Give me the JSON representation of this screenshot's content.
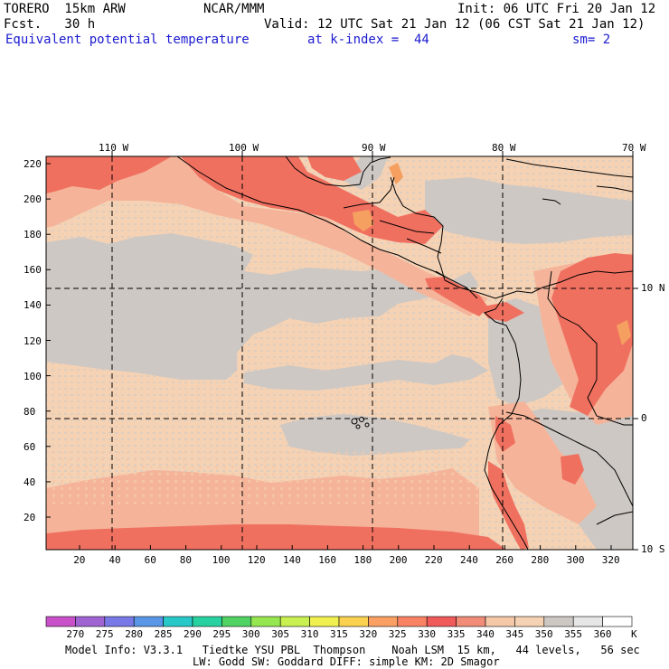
{
  "header": {
    "model": "TORERO  15km ARW",
    "org": "NCAR/MMM",
    "init": "Init: 06 UTC Fri 20 Jan 12",
    "fcst": "Fcst.   30 h",
    "valid": "Valid: 12 UTC Sat 21 Jan 12 (06 CST Sat 21 Jan 12)",
    "field": "Equivalent potential temperature",
    "level": "at k-index =  44",
    "smooth": "sm= 2"
  },
  "axes": {
    "lon_labels": [
      "110 W",
      "100 W",
      "90 W",
      "80 W",
      "70 W"
    ],
    "lat_labels": [
      "10 N",
      "0",
      "10 S"
    ],
    "y_ticks": [
      "220",
      "200",
      "180",
      "160",
      "140",
      "120",
      "100",
      "80",
      "60",
      "40",
      "20"
    ],
    "x_ticks": [
      "20",
      "40",
      "60",
      "80",
      "100",
      "120",
      "140",
      "160",
      "180",
      "200",
      "220",
      "240",
      "260",
      "280",
      "300",
      "320"
    ]
  },
  "colorbar": {
    "labels": [
      "270",
      "275",
      "280",
      "285",
      "290",
      "295",
      "300",
      "305",
      "310",
      "315",
      "320",
      "325",
      "330",
      "335",
      "340",
      "345",
      "350",
      "355",
      "360"
    ],
    "unit": "K",
    "colors": [
      "#c850c8",
      "#a064d2",
      "#7878e6",
      "#5a96e6",
      "#28c8c8",
      "#28d2a0",
      "#50d264",
      "#96e650",
      "#c8f050",
      "#f0f050",
      "#fad250",
      "#faa064",
      "#fa8264",
      "#f05a5a",
      "#f08c78",
      "#f5c8a8",
      "#f5d2b4",
      "#cdc8c4",
      "#e6e6e6",
      "#ffffff"
    ]
  },
  "footer": {
    "line1": "Model Info: V3.3.1   Tiedtke YSU PBL  Thompson    Noah LSM  15 km,   44 levels,   56 sec",
    "line2": "LW: Godd SW: Goddard DIFF: simple KM: 2D Smagor"
  }
}
